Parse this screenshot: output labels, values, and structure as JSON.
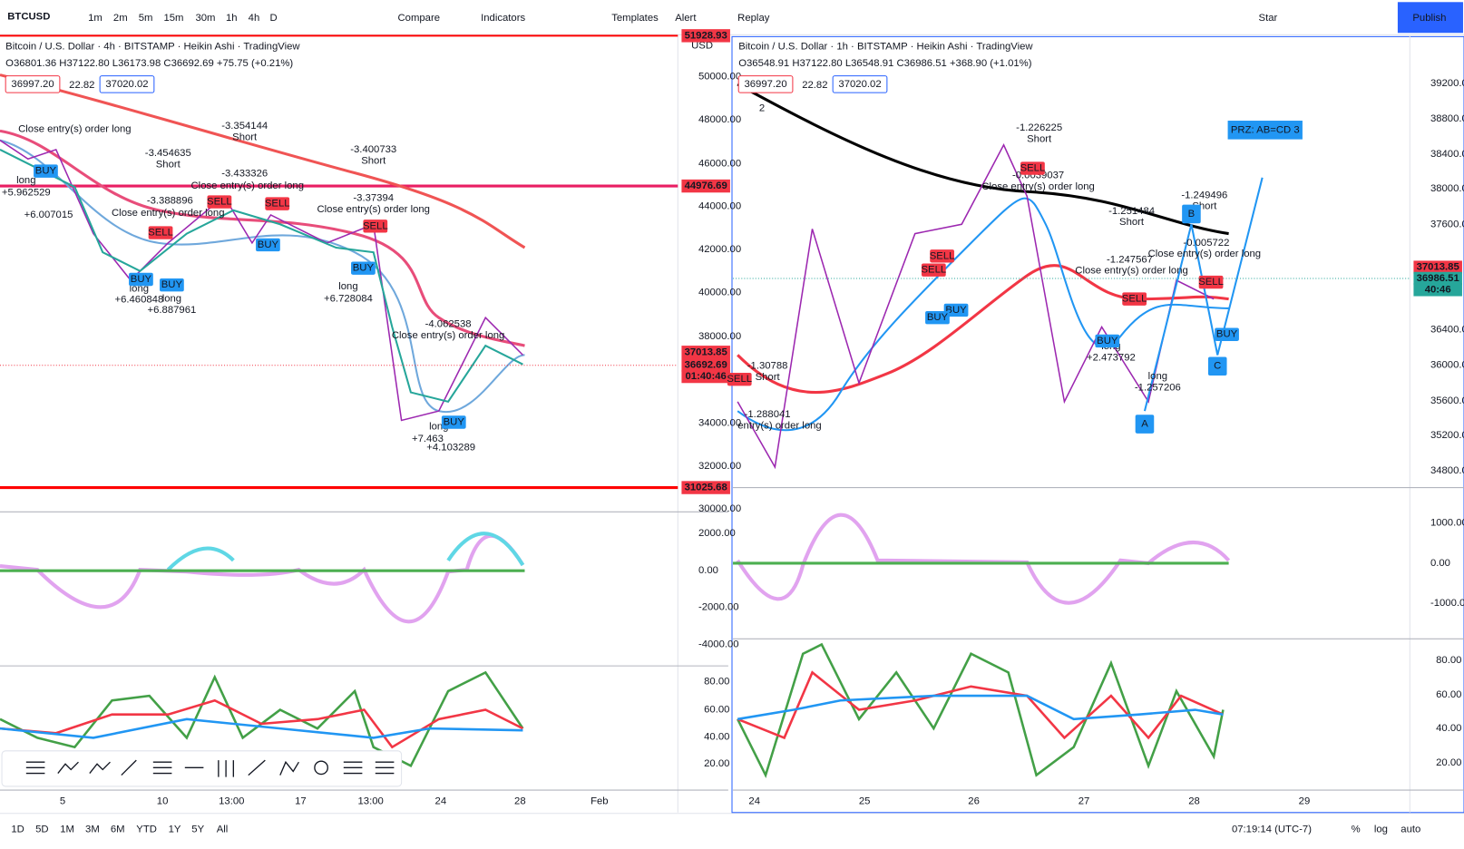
{
  "toolbar": {
    "symbol": "BTCUSD",
    "intervals": [
      "1m",
      "2m",
      "5m",
      "15m",
      "30m",
      "1h",
      "4h",
      "D"
    ],
    "compare": "Compare",
    "indicators": "Indicators",
    "templates": "Templates",
    "alert": "Alert",
    "replay": "Replay",
    "star": "Star",
    "publish": "Publish"
  },
  "left": {
    "title": "Bitcoin / U.S. Dollar · 4h · BITSTAMP · Heikin Ashi · TradingView",
    "ohlc": "O36801.36 H37122.80 L36173.98 C36692.69 +75.75 (+0.21%)",
    "bid": "36997.20",
    "spread": "22.82",
    "ask": "37020.02",
    "currency": "USD",
    "price_ticks": [
      "50000.00",
      "48000.00",
      "46000.00",
      "44000.00",
      "42000.00",
      "40000.00",
      "38000.00",
      "34000.00",
      "32000.00",
      "30000.00"
    ],
    "price_labels": [
      {
        "text": "51928.93",
        "color": "#f23645"
      },
      {
        "text": "44976.69",
        "color": "#f23645"
      },
      {
        "text": "37013.85",
        "color": "#f23645"
      },
      {
        "text": "36692.69",
        "color": "#f23645"
      },
      {
        "text": "01:40:46",
        "color": "#f23645"
      },
      {
        "text": "31025.68",
        "color": "#f23645"
      }
    ],
    "osc_ticks": [
      "2000.00",
      "0.00",
      "-2000.00",
      "-4000.00"
    ],
    "rsi_ticks": [
      "80.00",
      "60.00",
      "40.00",
      "20.00"
    ],
    "time_ticks": [
      "5",
      "10",
      "13:00",
      "17",
      "13:00",
      "24",
      "28",
      "Feb"
    ],
    "annotations": [
      "Close entry(s) order long",
      "long",
      "+5.962529",
      "+6.007015",
      "-3.454635",
      "Short",
      "-3.354144",
      "Short",
      "-3.433326",
      "Close entry(s) order long",
      "-3.388896",
      "Close entry(s) order long",
      "-3.400733",
      "Short",
      "-3.37394",
      "Close entry(s) order long",
      "long",
      "+6.460848",
      "long",
      "+6.887961",
      "long",
      "+6.728084",
      "-4.062538",
      "Close entry(s) order long",
      "long",
      "+7.463",
      "+4.103289"
    ],
    "signals": [
      {
        "text": "BUY",
        "color": "#2196f3"
      },
      {
        "text": "SELL",
        "color": "#f23645"
      },
      {
        "text": "SELL",
        "color": "#f23645"
      },
      {
        "text": "SELL",
        "color": "#f23645"
      },
      {
        "text": "BUY",
        "color": "#2196f3"
      },
      {
        "text": "BUY",
        "color": "#2196f3"
      },
      {
        "text": "BUY",
        "color": "#2196f3"
      },
      {
        "text": "SELL",
        "color": "#f23645"
      },
      {
        "text": "BUY",
        "color": "#2196f3"
      },
      {
        "text": "BUY",
        "color": "#2196f3"
      }
    ]
  },
  "right": {
    "title": "Bitcoin / U.S. Dollar · 1h · BITSTAMP · Heikin Ashi · TradingView",
    "ohlc": "O36548.91 H37122.80 L36548.91 C36986.51 +368.90 (+1.01%)",
    "bid": "36997.20",
    "spread": "22.82",
    "ask": "37020.02",
    "collapsed": "2",
    "price_ticks": [
      "39200.00",
      "38800.00",
      "38400.00",
      "38000.00",
      "37600.00",
      "36400.00",
      "36000.00",
      "35600.00",
      "35200.00",
      "34800.00"
    ],
    "price_labels": [
      {
        "text": "37013.85",
        "color": "#f23645"
      },
      {
        "text": "36986.51",
        "color": "#26a69a"
      },
      {
        "text": "40:46",
        "color": "#26a69a"
      }
    ],
    "osc_ticks": [
      "1000.00",
      "0.00",
      "-1000.00"
    ],
    "rsi_ticks": [
      "80.00",
      "60.00",
      "40.00",
      "20.00"
    ],
    "time_ticks": [
      "24",
      "25",
      "26",
      "27",
      "28",
      "29"
    ],
    "annotations": [
      "-1.226225",
      "Short",
      "-0.0039037",
      "Close entry(s) order long",
      "-1.251484",
      "Short",
      "-1.249496",
      "Short",
      "-0.005722",
      "Close entry(s) order long",
      "-1.247567",
      "Close entry(s) order long",
      "long",
      "+2.473792",
      "long",
      "-1.257206",
      "-1.30788",
      "Short",
      "-1.288041",
      "entry(s) order long"
    ],
    "signals": [
      {
        "text": "SELL",
        "color": "#f23645"
      },
      {
        "text": "SELL",
        "color": "#f23645"
      },
      {
        "text": "SELL",
        "color": "#f23645"
      },
      {
        "text": "BUY",
        "color": "#2196f3"
      },
      {
        "text": "BUY",
        "color": "#2196f3"
      },
      {
        "text": "BUY",
        "color": "#2196f3"
      },
      {
        "text": "SELL",
        "color": "#f23645"
      },
      {
        "text": "SELL",
        "color": "#f23645"
      },
      {
        "text": "BUY",
        "color": "#2196f3"
      },
      {
        "text": "SELL",
        "color": "#f23645"
      }
    ],
    "pattern": {
      "prz": "PRZ: AB=CD 3",
      "points": [
        "A",
        "B",
        "C"
      ]
    }
  },
  "bottom": {
    "ranges": [
      "1D",
      "5D",
      "1M",
      "3M",
      "6M",
      "YTD",
      "1Y",
      "5Y",
      "All"
    ],
    "time": "07:19:14 (UTC-7)",
    "percent": "%",
    "log": "log",
    "auto": "auto"
  }
}
